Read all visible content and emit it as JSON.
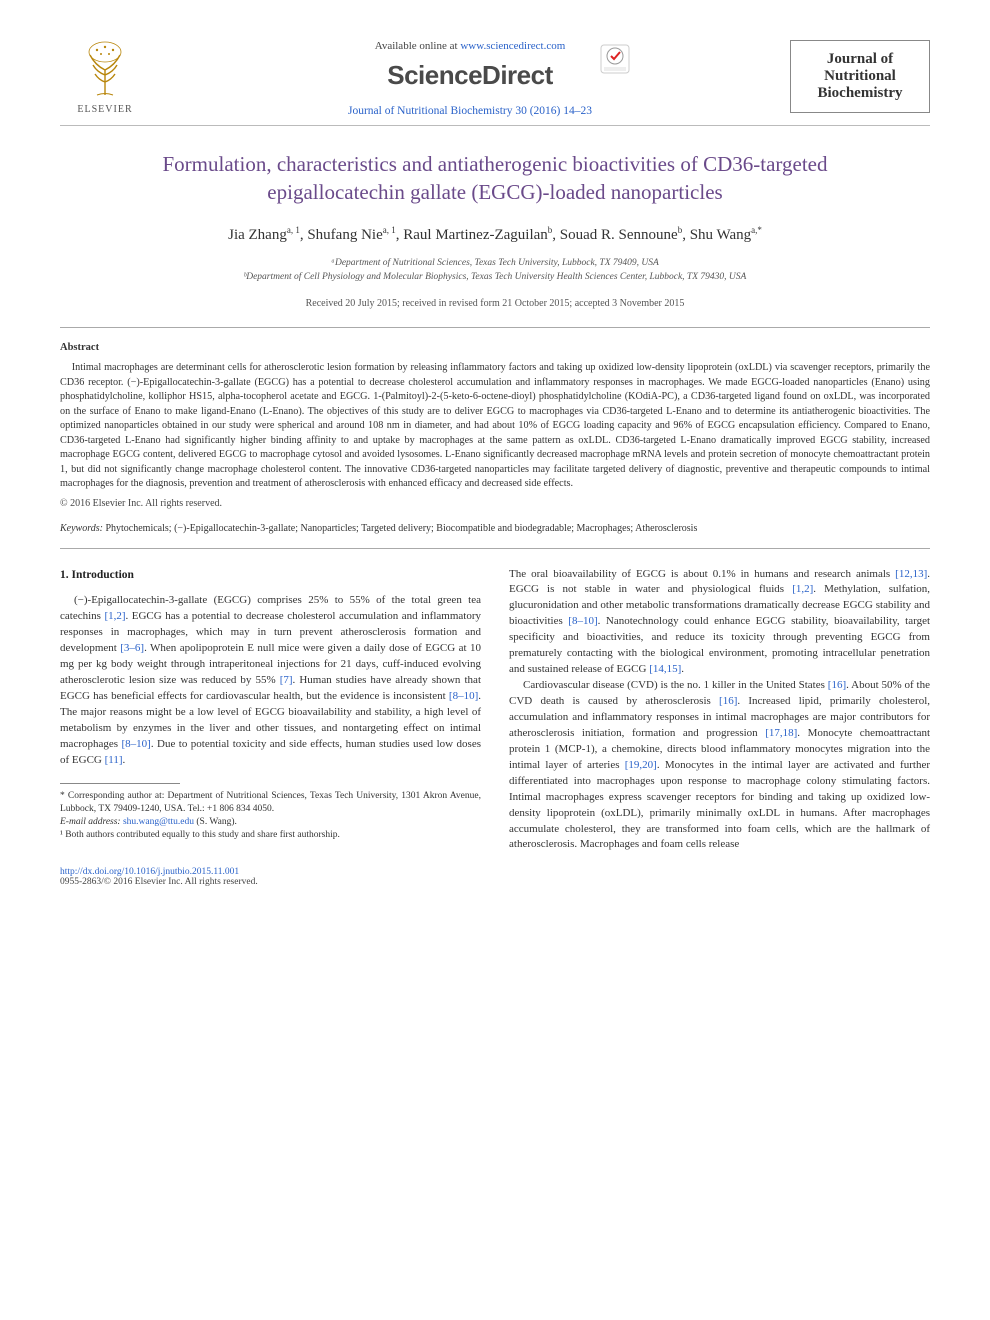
{
  "header": {
    "available_text": "Available online at ",
    "available_url": "www.sciencedirect.com",
    "brand": "ScienceDirect",
    "citation": "Journal of Nutritional Biochemistry 30 (2016) 14–23",
    "elsevier_label": "ELSEVIER",
    "journal_box": {
      "line1": "Journal of",
      "line2": "Nutritional",
      "line3": "Biochemistry"
    }
  },
  "article": {
    "title": "Formulation, characteristics and antiatherogenic bioactivities of CD36-targeted epigallocatechin gallate (EGCG)-loaded nanoparticles",
    "authors_html": "Jia Zhang<sup>a, 1</sup>, Shufang Nie<sup>a, 1</sup>, Raul Martinez-Zaguilan<sup>b</sup>, Souad R. Sennoune<sup>b</sup>, Shu Wang<sup>a,*</sup>",
    "affiliations": [
      "ᵃDepartment of Nutritional Sciences, Texas Tech University, Lubbock, TX 79409, USA",
      "ᵇDepartment of Cell Physiology and Molecular Biophysics, Texas Tech University Health Sciences Center, Lubbock, TX 79430, USA"
    ],
    "history": "Received 20 July 2015; received in revised form 21 October 2015; accepted 3 November 2015"
  },
  "abstract": {
    "label": "Abstract",
    "body": "Intimal macrophages are determinant cells for atherosclerotic lesion formation by releasing inflammatory factors and taking up oxidized low-density lipoprotein (oxLDL) via scavenger receptors, primarily the CD36 receptor. (−)-Epigallocatechin-3-gallate (EGCG) has a potential to decrease cholesterol accumulation and inflammatory responses in macrophages. We made EGCG-loaded nanoparticles (Enano) using phosphatidylcholine, kolliphor HS15, alpha-tocopherol acetate and EGCG. 1-(Palmitoyl)-2-(5-keto-6-octene-dioyl) phosphatidylcholine (KOdiA-PC), a CD36-targeted ligand found on oxLDL, was incorporated on the surface of Enano to make ligand-Enano (L-Enano). The objectives of this study are to deliver EGCG to macrophages via CD36-targeted L-Enano and to determine its antiatherogenic bioactivities. The optimized nanoparticles obtained in our study were spherical and around 108 nm in diameter, and had about 10% of EGCG loading capacity and 96% of EGCG encapsulation efficiency. Compared to Enano, CD36-targeted L-Enano had significantly higher binding affinity to and uptake by macrophages at the same pattern as oxLDL. CD36-targeted L-Enano dramatically improved EGCG stability, increased macrophage EGCG content, delivered EGCG to macrophage cytosol and avoided lysosomes. L-Enano significantly decreased macrophage mRNA levels and protein secretion of monocyte chemoattractant protein 1, but did not significantly change macrophage cholesterol content. The innovative CD36-targeted nanoparticles may facilitate targeted delivery of diagnostic, preventive and therapeutic compounds to intimal macrophages for the diagnosis, prevention and treatment of atherosclerosis with enhanced efficacy and decreased side effects.",
    "copyright": "© 2016 Elsevier Inc. All rights reserved."
  },
  "keywords": {
    "label": "Keywords:",
    "list": "Phytochemicals; (−)-Epigallocatechin-3-gallate; Nanoparticles; Targeted delivery; Biocompatible and biodegradable; Macrophages; Atherosclerosis"
  },
  "intro": {
    "heading": "1. Introduction",
    "col1_p1": "(−)-Epigallocatechin-3-gallate (EGCG) comprises 25% to 55% of the total green tea catechins [1,2]. EGCG has a potential to decrease cholesterol accumulation and inflammatory responses in macrophages, which may in turn prevent atherosclerosis formation and development [3–6]. When apolipoprotein E null mice were given a daily dose of EGCG at 10 mg per kg body weight through intraperitoneal injections for 21 days, cuff-induced evolving atherosclerotic lesion size was reduced by 55% [7]. Human studies have already shown that EGCG has beneficial effects for cardiovascular health, but the evidence is inconsistent [8–10]. The major reasons might be a low level of EGCG bioavailability and stability, a high level of metabolism by enzymes in the liver and other tissues, and nontargeting effect on intimal macrophages [8–10]. Due to potential toxicity and side effects, human studies used low doses of EGCG [11].",
    "col2_p1": "The oral bioavailability of EGCG is about 0.1% in humans and research animals [12,13]. EGCG is not stable in water and physiological fluids [1,2]. Methylation, sulfation, glucuronidation and other metabolic transformations dramatically decrease EGCG stability and bioactivities [8–10]. Nanotechnology could enhance EGCG stability, bioavailability, target specificity and bioactivities, and reduce its toxicity through preventing EGCG from prematurely contacting with the biological environment, promoting intracellular penetration and sustained release of EGCG [14,15].",
    "col2_p2": "Cardiovascular disease (CVD) is the no. 1 killer in the United States [16]. About 50% of the CVD death is caused by atherosclerosis [16]. Increased lipid, primarily cholesterol, accumulation and inflammatory responses in intimal macrophages are major contributors for atherosclerosis initiation, formation and progression [17,18]. Monocyte chemoattractant protein 1 (MCP-1), a chemokine, directs blood inflammatory monocytes migration into the intimal layer of arteries [19,20]. Monocytes in the intimal layer are activated and further differentiated into macrophages upon response to macrophage colony stimulating factors. Intimal macrophages express scavenger receptors for binding and taking up oxidized low-density lipoprotein (oxLDL), primarily minimally oxLDL in humans. After macrophages accumulate cholesterol, they are transformed into foam cells, which are the hallmark of atherosclerosis. Macrophages and foam cells release"
  },
  "footnotes": {
    "corr": "* Corresponding author at: Department of Nutritional Sciences, Texas Tech University, 1301 Akron Avenue, Lubbock, TX 79409-1240, USA. Tel.: +1 806 834 4050.",
    "email_label": "E-mail address:",
    "email": "shu.wang@ttu.edu",
    "email_suffix": "(S. Wang).",
    "equal": "¹ Both authors contributed equally to this study and share first authorship."
  },
  "footer": {
    "doi": "http://dx.doi.org/10.1016/j.jnutbio.2015.11.001",
    "issn": "0955-2863/© 2016 Elsevier Inc. All rights reserved."
  },
  "colors": {
    "link": "#2a62c9",
    "title": "#6a4a8a",
    "text": "#333333",
    "rule": "#aaaaaa"
  }
}
